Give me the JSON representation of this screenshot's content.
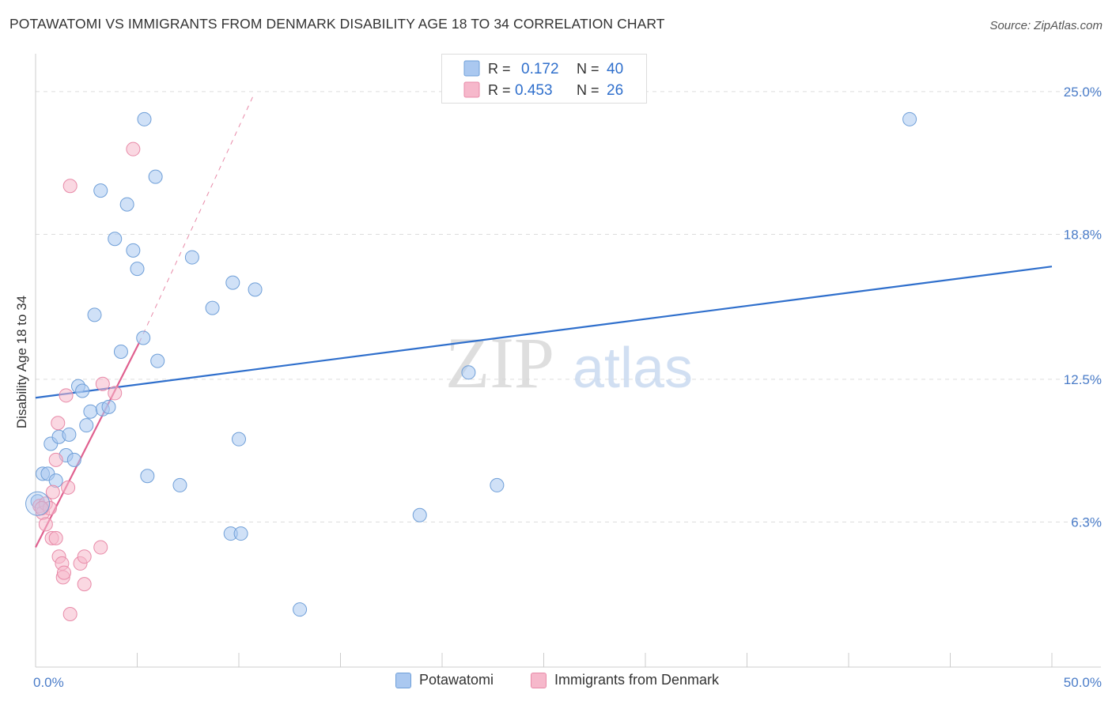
{
  "title": "POTAWATOMI VS IMMIGRANTS FROM DENMARK DISABILITY AGE 18 TO 34 CORRELATION CHART",
  "source": "Source: ZipAtlas.com",
  "watermark": {
    "zip": "ZIP",
    "atlas": "atlas"
  },
  "colors": {
    "blue_fill": "#aac8f0",
    "blue_stroke": "#6f9fd8",
    "blue_line": "#2f6fcc",
    "pink_fill": "#f6b8cb",
    "pink_stroke": "#e88aa8",
    "pink_line": "#e0608f",
    "tick_label": "#4a7cc8",
    "grid": "#dddddd"
  },
  "legend": {
    "rows": [
      {
        "r_label": "R =",
        "r_value": "0.172",
        "n_label": "N =",
        "n_value": "40",
        "series": "blue"
      },
      {
        "r_label": "R =",
        "r_value": "0.453",
        "n_label": "N =",
        "n_value": "26",
        "series": "pink"
      }
    ]
  },
  "chart_data": {
    "type": "scatter",
    "title": "POTAWATOMI VS IMMIGRANTS FROM DENMARK DISABILITY AGE 18 TO 34 CORRELATION CHART",
    "xlabel": "",
    "ylabel": "Disability Age 18 to 34",
    "xlim": [
      0,
      50
    ],
    "ylim": [
      0,
      26.3
    ],
    "x_tick_labels": [
      {
        "value": 0,
        "label": "0.0%"
      },
      {
        "value": 50,
        "label": "50.0%"
      }
    ],
    "y_tick_labels": [
      {
        "value": 6.3,
        "label": "6.3%"
      },
      {
        "value": 12.5,
        "label": "12.5%"
      },
      {
        "value": 18.8,
        "label": "18.8%"
      },
      {
        "value": 25.0,
        "label": "25.0%"
      }
    ],
    "legend_position": "bottom-center",
    "series": [
      {
        "name": "Potawatomi",
        "color": "blue",
        "R": 0.172,
        "N": 40,
        "trend": {
          "x": [
            0,
            50
          ],
          "y": [
            11.7,
            17.4
          ],
          "style": "solid"
        },
        "points": [
          [
            0.1,
            7.2
          ],
          [
            0.35,
            8.4
          ],
          [
            0.6,
            8.4
          ],
          [
            0.75,
            9.7
          ],
          [
            1.0,
            8.1
          ],
          [
            1.15,
            10.0
          ],
          [
            1.5,
            9.2
          ],
          [
            1.65,
            10.1
          ],
          [
            1.9,
            9.0
          ],
          [
            2.1,
            12.2
          ],
          [
            2.3,
            12.0
          ],
          [
            2.5,
            10.5
          ],
          [
            2.7,
            11.1
          ],
          [
            2.9,
            15.3
          ],
          [
            3.2,
            20.7
          ],
          [
            3.3,
            11.2
          ],
          [
            3.6,
            11.3
          ],
          [
            3.9,
            18.6
          ],
          [
            4.2,
            13.7
          ],
          [
            4.5,
            20.1
          ],
          [
            4.8,
            18.1
          ],
          [
            5.0,
            17.3
          ],
          [
            5.3,
            14.3
          ],
          [
            5.35,
            23.8
          ],
          [
            5.5,
            8.3
          ],
          [
            5.9,
            21.3
          ],
          [
            6.0,
            13.3
          ],
          [
            7.1,
            7.9
          ],
          [
            7.7,
            17.8
          ],
          [
            8.7,
            15.6
          ],
          [
            9.6,
            5.8
          ],
          [
            9.7,
            16.7
          ],
          [
            10.1,
            5.8
          ],
          [
            10.8,
            16.4
          ],
          [
            10.0,
            9.9
          ],
          [
            13.0,
            2.5
          ],
          [
            18.9,
            6.6
          ],
          [
            21.3,
            12.8
          ],
          [
            22.7,
            7.9
          ],
          [
            43.0,
            23.8
          ]
        ]
      },
      {
        "name": "Immigrants from Denmark",
        "color": "pink",
        "R": 0.453,
        "N": 26,
        "trend": {
          "x": [
            0,
            5.1
          ],
          "y": [
            5.2,
            14.1
          ],
          "style": "solid",
          "extended_x": [
            5.1,
            10.7
          ],
          "extended_y": [
            14.1,
            24.8
          ],
          "extended_style": "dashed"
        },
        "points": [
          [
            0.2,
            7.0
          ],
          [
            0.35,
            6.7
          ],
          [
            0.5,
            7.1
          ],
          [
            0.5,
            6.2
          ],
          [
            0.7,
            6.9
          ],
          [
            0.8,
            5.6
          ],
          [
            0.85,
            7.6
          ],
          [
            1.0,
            5.6
          ],
          [
            1.0,
            9.0
          ],
          [
            1.1,
            10.6
          ],
          [
            1.15,
            4.8
          ],
          [
            1.3,
            4.5
          ],
          [
            1.35,
            3.9
          ],
          [
            1.4,
            4.1
          ],
          [
            1.5,
            11.8
          ],
          [
            1.6,
            7.8
          ],
          [
            1.7,
            2.3
          ],
          [
            1.7,
            20.9
          ],
          [
            2.2,
            4.5
          ],
          [
            2.4,
            3.6
          ],
          [
            2.4,
            4.8
          ],
          [
            3.2,
            5.2
          ],
          [
            3.3,
            12.3
          ],
          [
            3.9,
            11.9
          ],
          [
            4.8,
            22.5
          ],
          [
            0.3,
            6.9
          ]
        ]
      }
    ]
  },
  "bottom_legend": {
    "items": [
      {
        "label": "Potawatomi",
        "color": "blue"
      },
      {
        "label": "Immigrants from Denmark",
        "color": "pink"
      }
    ]
  }
}
